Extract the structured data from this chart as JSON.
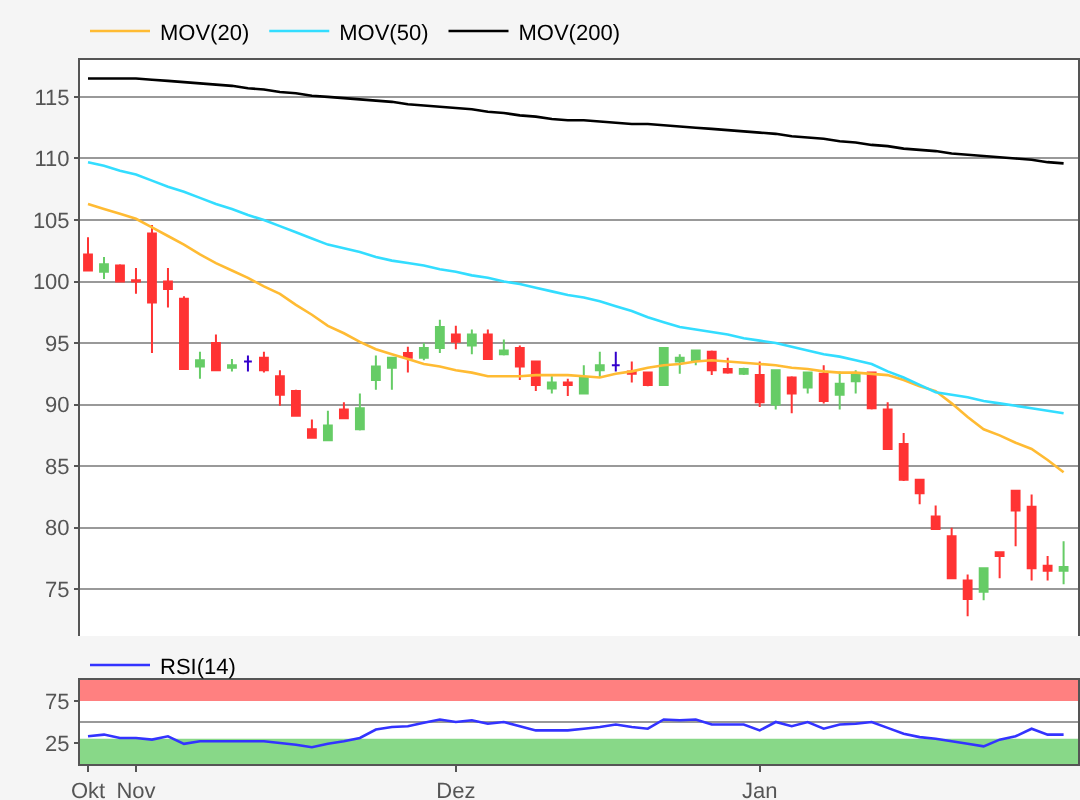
{
  "chart_data": [
    {
      "type": "candlestick",
      "categories": [
        null,
        null,
        null,
        null,
        null,
        null,
        null,
        null,
        null,
        null,
        null,
        null,
        null,
        null,
        null,
        null,
        null,
        null,
        null,
        null,
        null,
        null,
        null,
        null,
        null,
        null,
        null,
        null,
        null,
        null,
        null,
        null,
        null,
        null,
        null,
        null,
        null,
        null,
        null,
        null,
        null,
        null,
        null,
        null,
        null,
        null,
        null,
        null,
        null,
        null,
        null,
        null,
        null,
        null,
        null,
        null,
        null,
        null,
        null,
        null,
        null,
        null
      ],
      "ohlc": [
        [
          102.2,
          103.6,
          100.9,
          100.9
        ],
        [
          100.8,
          102.0,
          100.2,
          101.4
        ],
        [
          101.3,
          101.4,
          100.0,
          100.0
        ],
        [
          100.1,
          101.1,
          99.0,
          100.0
        ],
        [
          103.9,
          104.6,
          94.2,
          98.3
        ],
        [
          100.0,
          101.1,
          97.9,
          99.4
        ],
        [
          98.6,
          98.8,
          92.9,
          92.9
        ],
        [
          93.1,
          94.3,
          92.1,
          93.6
        ],
        [
          95.0,
          95.7,
          92.8,
          92.8
        ],
        [
          93.0,
          93.7,
          92.7,
          93.2
        ],
        [
          93.5,
          94.0,
          92.7,
          93.5
        ],
        [
          93.8,
          94.3,
          92.6,
          92.8
        ],
        [
          92.3,
          92.8,
          89.9,
          90.8
        ],
        [
          91.1,
          91.2,
          89.1,
          89.1
        ],
        [
          88.0,
          88.8,
          87.3,
          87.3
        ],
        [
          87.1,
          89.5,
          87.1,
          88.3
        ],
        [
          89.6,
          90.2,
          88.9,
          88.9
        ],
        [
          88.0,
          90.9,
          87.9,
          89.7
        ],
        [
          92.0,
          94.0,
          91.2,
          93.1
        ],
        [
          93.0,
          93.8,
          91.2,
          93.8
        ],
        [
          94.2,
          94.7,
          92.6,
          93.8
        ],
        [
          93.8,
          95.0,
          93.6,
          94.6
        ],
        [
          94.6,
          96.9,
          94.2,
          96.3
        ],
        [
          95.7,
          96.4,
          94.5,
          95.1
        ],
        [
          94.8,
          96.1,
          94.1,
          95.7
        ],
        [
          95.7,
          96.1,
          93.7,
          93.7
        ],
        [
          94.1,
          95.3,
          94.0,
          94.4
        ],
        [
          94.6,
          94.8,
          92.0,
          93.1
        ],
        [
          93.5,
          93.5,
          91.1,
          91.6
        ],
        [
          91.3,
          92.3,
          90.9,
          91.8
        ],
        [
          91.8,
          92.1,
          90.7,
          91.6
        ],
        [
          90.9,
          93.2,
          90.9,
          92.2
        ],
        [
          92.8,
          94.3,
          92.2,
          93.2
        ],
        [
          93.2,
          94.3,
          92.7,
          93.2
        ],
        [
          92.7,
          93.5,
          91.8,
          92.5
        ],
        [
          92.6,
          92.7,
          91.5,
          91.6
        ],
        [
          91.6,
          94.6,
          91.6,
          94.6
        ],
        [
          93.5,
          94.1,
          92.5,
          93.8
        ],
        [
          93.6,
          94.4,
          93.2,
          94.4
        ],
        [
          94.3,
          94.4,
          92.4,
          92.8
        ],
        [
          92.9,
          93.8,
          92.5,
          92.6
        ],
        [
          92.5,
          93.0,
          92.4,
          92.9
        ],
        [
          92.4,
          93.5,
          89.8,
          90.2
        ],
        [
          90.0,
          92.8,
          89.6,
          92.8
        ],
        [
          92.2,
          92.3,
          89.3,
          90.9
        ],
        [
          91.4,
          92.6,
          90.9,
          92.6
        ],
        [
          92.5,
          93.2,
          90.1,
          90.3
        ],
        [
          90.8,
          92.7,
          89.6,
          91.7
        ],
        [
          91.9,
          92.8,
          90.9,
          92.4
        ],
        [
          92.6,
          92.6,
          89.6,
          89.7
        ],
        [
          89.6,
          90.2,
          86.4,
          86.4
        ],
        [
          86.8,
          87.7,
          83.8,
          83.9
        ],
        [
          83.9,
          83.9,
          81.9,
          82.8
        ],
        [
          80.9,
          81.8,
          79.9,
          79.9
        ],
        [
          79.3,
          80.0,
          75.9,
          75.9
        ],
        [
          75.7,
          76.2,
          72.8,
          74.2
        ],
        [
          74.8,
          76.7,
          74.1,
          76.7
        ],
        [
          78.0,
          78.0,
          75.9,
          77.7
        ],
        [
          83.0,
          83.0,
          78.5,
          81.4
        ],
        [
          81.7,
          82.7,
          75.7,
          76.7
        ],
        [
          76.9,
          77.7,
          75.7,
          76.5
        ],
        [
          76.5,
          78.9,
          75.4,
          76.8
        ]
      ],
      "colors": [
        "#ff3333",
        "#66cc66",
        "#ff3333",
        "#ff3333",
        "#ff3333",
        "#ff3333",
        "#ff3333",
        "#66cc66",
        "#ff3333",
        "#66cc66",
        "#3300cc",
        "#ff3333",
        "#ff3333",
        "#ff3333",
        "#ff3333",
        "#66cc66",
        "#ff3333",
        "#66cc66",
        "#66cc66",
        "#66cc66",
        "#ff3333",
        "#66cc66",
        "#66cc66",
        "#ff3333",
        "#66cc66",
        "#ff3333",
        "#66cc66",
        "#ff3333",
        "#ff3333",
        "#66cc66",
        "#ff3333",
        "#66cc66",
        "#66cc66",
        "#3300cc",
        "#ff3333",
        "#ff3333",
        "#66cc66",
        "#66cc66",
        "#66cc66",
        "#ff3333",
        "#ff3333",
        "#66cc66",
        "#ff3333",
        "#66cc66",
        "#ff3333",
        "#66cc66",
        "#ff3333",
        "#66cc66",
        "#66cc66",
        "#ff3333",
        "#ff3333",
        "#ff3333",
        "#ff3333",
        "#ff3333",
        "#ff3333",
        "#ff3333",
        "#66cc66",
        "#ff3333",
        "#ff3333",
        "#ff3333",
        "#ff3333",
        "#66cc66"
      ],
      "series": [
        {
          "type": "line",
          "name": "MOV(20)",
          "color": "#ffbb33",
          "values": [
            106.3,
            105.9,
            105.5,
            105.1,
            104.4,
            103.7,
            103.0,
            102.2,
            101.5,
            100.9,
            100.3,
            99.6,
            99.0,
            98.1,
            97.3,
            96.4,
            95.8,
            95.1,
            94.5,
            94.1,
            93.7,
            93.3,
            93.1,
            92.8,
            92.6,
            92.3,
            92.3,
            92.3,
            92.4,
            92.4,
            92.4,
            92.3,
            92.2,
            92.5,
            92.7,
            93.0,
            93.2,
            93.3,
            93.5,
            93.6,
            93.5,
            93.4,
            93.3,
            93.2,
            93.0,
            92.9,
            92.7,
            92.6,
            92.6,
            92.5,
            92.4,
            92.0,
            91.5,
            91.1,
            90.1,
            89.0,
            88.0,
            87.5,
            86.9,
            86.4,
            85.5,
            84.5
          ]
        },
        {
          "type": "line",
          "name": "MOV(50)",
          "color": "#33ddff",
          "values": [
            109.7,
            109.4,
            109.0,
            108.7,
            108.2,
            107.7,
            107.3,
            106.8,
            106.3,
            105.9,
            105.4,
            105.0,
            104.5,
            104.0,
            103.5,
            103.0,
            102.7,
            102.4,
            102.0,
            101.7,
            101.5,
            101.3,
            101.0,
            100.8,
            100.5,
            100.3,
            100.0,
            99.8,
            99.5,
            99.2,
            98.9,
            98.7,
            98.4,
            98.0,
            97.6,
            97.1,
            96.7,
            96.3,
            96.1,
            95.9,
            95.7,
            95.4,
            95.2,
            95.0,
            94.7,
            94.4,
            94.1,
            93.9,
            93.6,
            93.3,
            92.7,
            92.2,
            91.6,
            91.0,
            90.8,
            90.6,
            90.3,
            90.1,
            89.9,
            89.7,
            89.5,
            89.3
          ]
        },
        {
          "type": "line",
          "name": "MOV(200)",
          "color": "#000000",
          "values": [
            116.5,
            116.5,
            116.5,
            116.5,
            116.4,
            116.3,
            116.2,
            116.1,
            116.0,
            115.9,
            115.7,
            115.6,
            115.4,
            115.3,
            115.1,
            115.0,
            114.9,
            114.8,
            114.7,
            114.6,
            114.4,
            114.3,
            114.2,
            114.1,
            114.0,
            113.8,
            113.7,
            113.5,
            113.4,
            113.2,
            113.1,
            113.1,
            113.0,
            112.9,
            112.8,
            112.8,
            112.7,
            112.6,
            112.5,
            112.4,
            112.3,
            112.2,
            112.1,
            112.0,
            111.8,
            111.7,
            111.6,
            111.4,
            111.3,
            111.1,
            111.0,
            110.8,
            110.7,
            110.6,
            110.4,
            110.3,
            110.2,
            110.1,
            110.0,
            109.9,
            109.7,
            109.6
          ]
        }
      ],
      "ylim": [
        71.2,
        118
      ],
      "yticks": [
        75,
        80,
        85,
        90,
        95,
        100,
        105,
        110,
        115
      ],
      "grid": "y",
      "legend": "top left",
      "tick_labels": "y"
    },
    {
      "type": "line",
      "categories": [
        "Okt",
        null,
        null,
        "Nov",
        null,
        null,
        null,
        null,
        null,
        null,
        null,
        null,
        null,
        null,
        null,
        null,
        null,
        null,
        null,
        null,
        null,
        null,
        null,
        "Dez",
        null,
        null,
        null,
        null,
        null,
        null,
        null,
        null,
        null,
        null,
        null,
        null,
        null,
        null,
        null,
        null,
        null,
        null,
        "Jan",
        null,
        null,
        null,
        null,
        null,
        null,
        null,
        null,
        null,
        null,
        null,
        null,
        null,
        null,
        null,
        null,
        null,
        null,
        null
      ],
      "series": [
        {
          "name": "RSI(14)",
          "color": "#3333ff",
          "values": [
            33,
            35,
            31,
            31,
            29,
            33,
            24,
            27,
            27,
            27,
            27,
            27,
            25,
            23,
            20,
            24,
            27,
            31,
            41,
            44,
            45,
            49,
            53,
            50,
            52,
            48,
            50,
            45,
            40,
            40,
            40,
            42,
            44,
            47,
            44,
            42,
            53,
            52,
            53,
            47,
            47,
            47,
            40,
            50,
            45,
            50,
            42,
            47,
            48,
            50,
            43,
            36,
            32,
            30,
            27,
            24,
            21,
            29,
            33,
            42,
            35,
            35
          ]
        }
      ],
      "ylim": [
        0,
        100
      ],
      "yticks": [
        25,
        75
      ],
      "bands": [
        {
          "axis": "y",
          "from": 75,
          "to": 100,
          "color": "#ff8080"
        },
        {
          "axis": "y",
          "from": 0,
          "to": 30,
          "color": "#88d888"
        }
      ],
      "ref_lines": [
        {
          "axis": "y",
          "value": 50,
          "color": "#999999"
        }
      ],
      "legend": "top left"
    }
  ]
}
